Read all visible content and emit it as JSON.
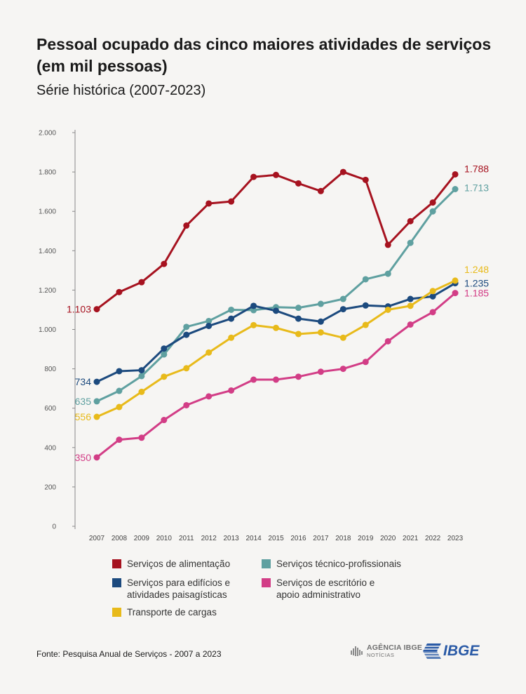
{
  "header": {
    "title": "Pessoal ocupado das cinco maiores atividades de serviços (em mil pessoas)",
    "subtitle": "Série histórica (2007-2023)"
  },
  "footer": {
    "source": "Fonte: Pesquisa Anual de Serviços - 2007 a 2023",
    "agencia_line1": "AGÊNCIA IBGE",
    "agencia_line2": "NOTÍCIAS",
    "ibge_logo": "IBGE"
  },
  "colors": {
    "alimentacao": "#a6121f",
    "tecnico": "#5fa0a0",
    "edificios": "#1c4a7e",
    "escritorio": "#d23d86",
    "cargas": "#e8ba1a"
  },
  "chart_data": {
    "type": "line",
    "title": "Pessoal ocupado das cinco maiores atividades de serviços (em mil pessoas)",
    "subtitle": "Série histórica (2007-2023)",
    "xlabel": "",
    "ylabel": "",
    "x": [
      "2007",
      "2008",
      "2009",
      "2010",
      "2011",
      "2012",
      "2013",
      "2014",
      "2015",
      "2016",
      "2017",
      "2018",
      "2019",
      "2020",
      "2021",
      "2022",
      "2023"
    ],
    "ylim": [
      0,
      2000
    ],
    "yticks": [
      0,
      200,
      400,
      600,
      800,
      1000,
      1200,
      1400,
      1600,
      1800,
      2000
    ],
    "ytick_labels": [
      "0",
      "200",
      "400",
      "600",
      "800",
      "1.000",
      "1.200",
      "1.400",
      "1.600",
      "1.800",
      "2.000"
    ],
    "grid": false,
    "legend_position": "bottom",
    "series": [
      {
        "name": "Serviços de alimentação",
        "key": "alimentacao",
        "color": "#a6121f",
        "values": [
          1103,
          1190,
          1240,
          1333,
          1528,
          1640,
          1650,
          1775,
          1785,
          1742,
          1703,
          1800,
          1760,
          1430,
          1550,
          1645,
          1788
        ],
        "first_label": "1.103",
        "last_label": "1.788"
      },
      {
        "name": "Serviços técnico-profissionais",
        "key": "tecnico",
        "color": "#5fa0a0",
        "values": [
          635,
          688,
          763,
          873,
          1013,
          1043,
          1100,
          1098,
          1113,
          1110,
          1130,
          1155,
          1255,
          1283,
          1440,
          1600,
          1713
        ],
        "first_label": "635",
        "last_label": "1.713"
      },
      {
        "name": "Serviços para edifícios e atividades paisagísticas",
        "key": "edificios",
        "color": "#1c4a7e",
        "values": [
          734,
          788,
          793,
          903,
          973,
          1018,
          1055,
          1120,
          1095,
          1055,
          1040,
          1103,
          1122,
          1117,
          1155,
          1168,
          1235
        ],
        "first_label": "734",
        "last_label": "1.235"
      },
      {
        "name": "Serviços de escritório e apoio administrativo",
        "key": "escritorio",
        "color": "#d23d86",
        "values": [
          350,
          440,
          450,
          540,
          615,
          660,
          690,
          745,
          745,
          760,
          785,
          800,
          835,
          940,
          1025,
          1088,
          1185
        ],
        "first_label": "350",
        "last_label": "1.185"
      },
      {
        "name": "Transporte de cargas",
        "key": "cargas",
        "color": "#e8ba1a",
        "values": [
          556,
          606,
          683,
          760,
          803,
          883,
          958,
          1022,
          1008,
          977,
          985,
          958,
          1023,
          1100,
          1120,
          1195,
          1248
        ],
        "first_label": "556",
        "last_label": "1.248"
      }
    ]
  },
  "legend": {
    "items": [
      {
        "label_lines": [
          "Serviços de alimentação"
        ],
        "key": "alimentacao"
      },
      {
        "label_lines": [
          "Serviços técnico-profissionais"
        ],
        "key": "tecnico"
      },
      {
        "label_lines": [
          "Serviços para edifícios e",
          "atividades paisagísticas"
        ],
        "key": "edificios"
      },
      {
        "label_lines": [
          "Serviços de escritório e",
          "apoio administrativo"
        ],
        "key": "escritorio"
      },
      {
        "label_lines": [
          "Transporte de cargas"
        ],
        "key": "cargas"
      }
    ]
  }
}
